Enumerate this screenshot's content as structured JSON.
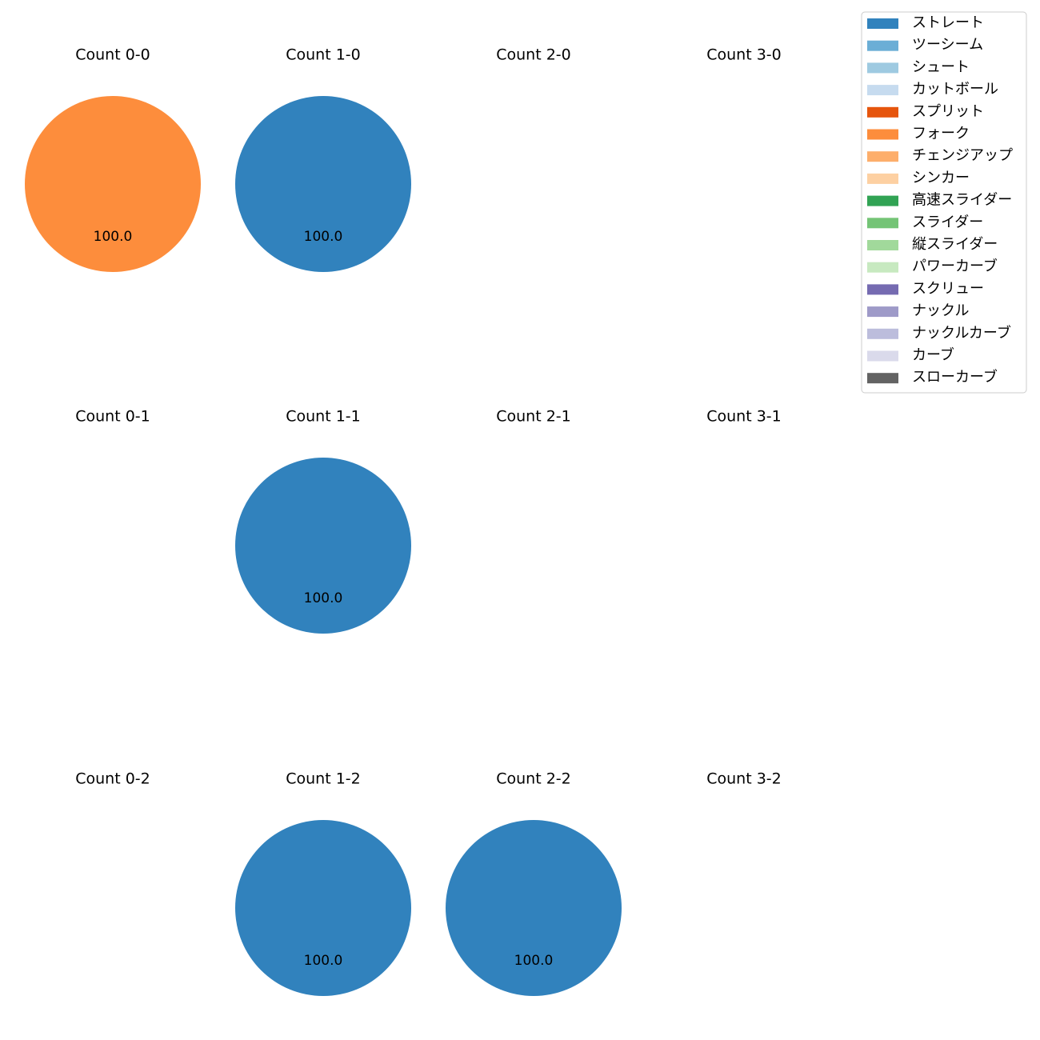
{
  "chart_data": [
    {
      "type": "pie",
      "title": "Count 0-0",
      "categories": [
        "フォーク"
      ],
      "values": [
        100
      ],
      "value_labels": [
        "100.0"
      ],
      "colors": [
        "#fd8d3c"
      ]
    },
    {
      "type": "pie",
      "title": "Count 1-0",
      "categories": [
        "ストレート"
      ],
      "values": [
        100
      ],
      "value_labels": [
        "100.0"
      ],
      "colors": [
        "#3182bd"
      ]
    },
    {
      "type": "pie",
      "title": "Count 2-0",
      "categories": [],
      "values": [],
      "value_labels": [],
      "colors": []
    },
    {
      "type": "pie",
      "title": "Count 3-0",
      "categories": [],
      "values": [],
      "value_labels": [],
      "colors": []
    },
    {
      "type": "pie",
      "title": "Count 0-1",
      "categories": [],
      "values": [],
      "value_labels": [],
      "colors": []
    },
    {
      "type": "pie",
      "title": "Count 1-1",
      "categories": [
        "ストレート"
      ],
      "values": [
        100
      ],
      "value_labels": [
        "100.0"
      ],
      "colors": [
        "#3182bd"
      ]
    },
    {
      "type": "pie",
      "title": "Count 2-1",
      "categories": [],
      "values": [],
      "value_labels": [],
      "colors": []
    },
    {
      "type": "pie",
      "title": "Count 3-1",
      "categories": [],
      "values": [],
      "value_labels": [],
      "colors": []
    },
    {
      "type": "pie",
      "title": "Count 0-2",
      "categories": [],
      "values": [],
      "value_labels": [],
      "colors": []
    },
    {
      "type": "pie",
      "title": "Count 1-2",
      "categories": [
        "ストレート"
      ],
      "values": [
        100
      ],
      "value_labels": [
        "100.0"
      ],
      "colors": [
        "#3182bd"
      ]
    },
    {
      "type": "pie",
      "title": "Count 2-2",
      "categories": [
        "ストレート"
      ],
      "values": [
        100
      ],
      "value_labels": [
        "100.0"
      ],
      "colors": [
        "#3182bd"
      ]
    },
    {
      "type": "pie",
      "title": "Count 3-2",
      "categories": [],
      "values": [],
      "value_labels": [],
      "colors": []
    }
  ],
  "legend": {
    "location": "upper right",
    "categories": [
      "ストレート",
      "ツーシーム",
      "シュート",
      "カットボール",
      "スプリット",
      "フォーク",
      "チェンジアップ",
      "シンカー",
      "高速スライダー",
      "スライダー",
      "縦スライダー",
      "パワーカーブ",
      "スクリュー",
      "ナックル",
      "ナックルカーブ",
      "カーブ",
      "スローカーブ"
    ],
    "colors": [
      "#3182bd",
      "#6baed6",
      "#9ecae1",
      "#c6dbef",
      "#e6550d",
      "#fd8d3c",
      "#fdae6b",
      "#fdd0a2",
      "#31a354",
      "#74c476",
      "#a1d99b",
      "#c7e9c0",
      "#756bb1",
      "#9e9ac8",
      "#bcbddc",
      "#dadaeb",
      "#636363"
    ]
  }
}
